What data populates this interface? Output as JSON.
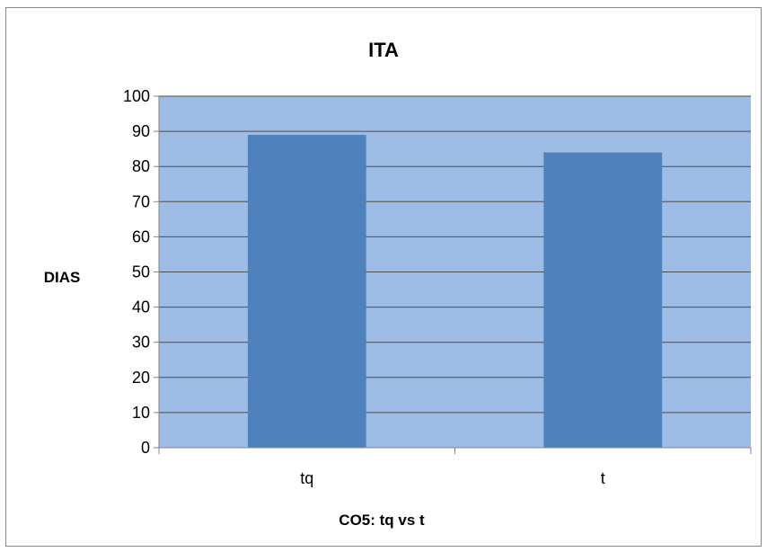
{
  "chart_data": {
    "type": "bar",
    "title": "ITA",
    "xlabel": "CO5: tq vs t",
    "ylabel": "DIAS",
    "categories": [
      "tq",
      "t"
    ],
    "values": [
      89,
      84
    ],
    "ylim": [
      0,
      100
    ],
    "yticks": [
      0,
      10,
      20,
      30,
      40,
      50,
      60,
      70,
      80,
      90,
      100
    ],
    "grid": true,
    "legend": "none",
    "colors": {
      "bar": "#4f81bd",
      "plot_background": "#9dbde6",
      "gridline": "#4d4d4d"
    }
  }
}
